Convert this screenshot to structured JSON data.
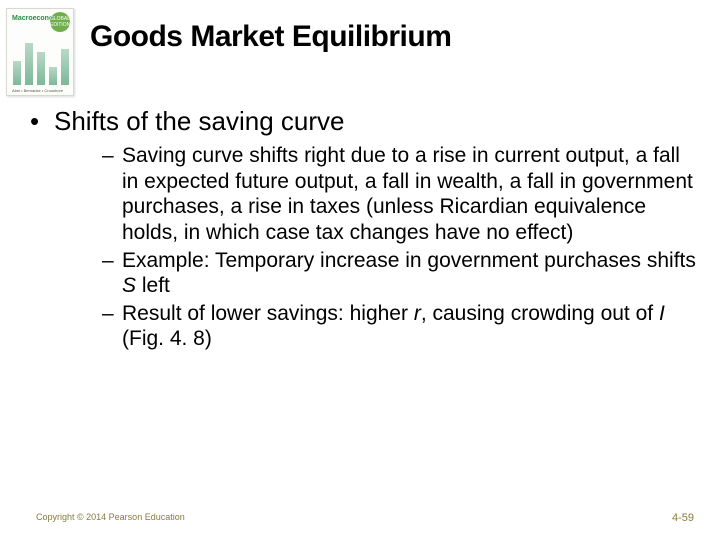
{
  "book_cover": {
    "title": "Macroeconomics",
    "badge_text": "GLOBAL EDITION",
    "author": "Abel • Bernanke • Croushore",
    "background_color": "#fdfdfb",
    "badge_color": "#6fae4a"
  },
  "slide_title": "Goods Market Equilibrium",
  "bullet_main": "Shifts of the saving curve",
  "sub_bullets": [
    "Saving curve shifts right due to a rise in current output, a fall in expected future output, a fall in wealth, a fall in government purchases, a rise in taxes (unless Ricardian equivalence holds, in which case tax changes have no effect)",
    "Example: Temporary increase in government purchases shifts <em>S</em> left",
    "Result of lower savings: higher <em>r</em>, causing crowding out of <em>I</em> (Fig. 4. 8)"
  ],
  "copyright": "Copyright © 2014 Pearson Education",
  "page_number": "4-59",
  "colors": {
    "text": "#000000",
    "footer_text": "#8a7a3a",
    "background": "#ffffff"
  },
  "typography": {
    "title_fontsize": 30,
    "level1_fontsize": 26,
    "level2_fontsize": 21,
    "footer_fontsize": 9,
    "pagenum_fontsize": 11,
    "font_family": "Verdana"
  }
}
